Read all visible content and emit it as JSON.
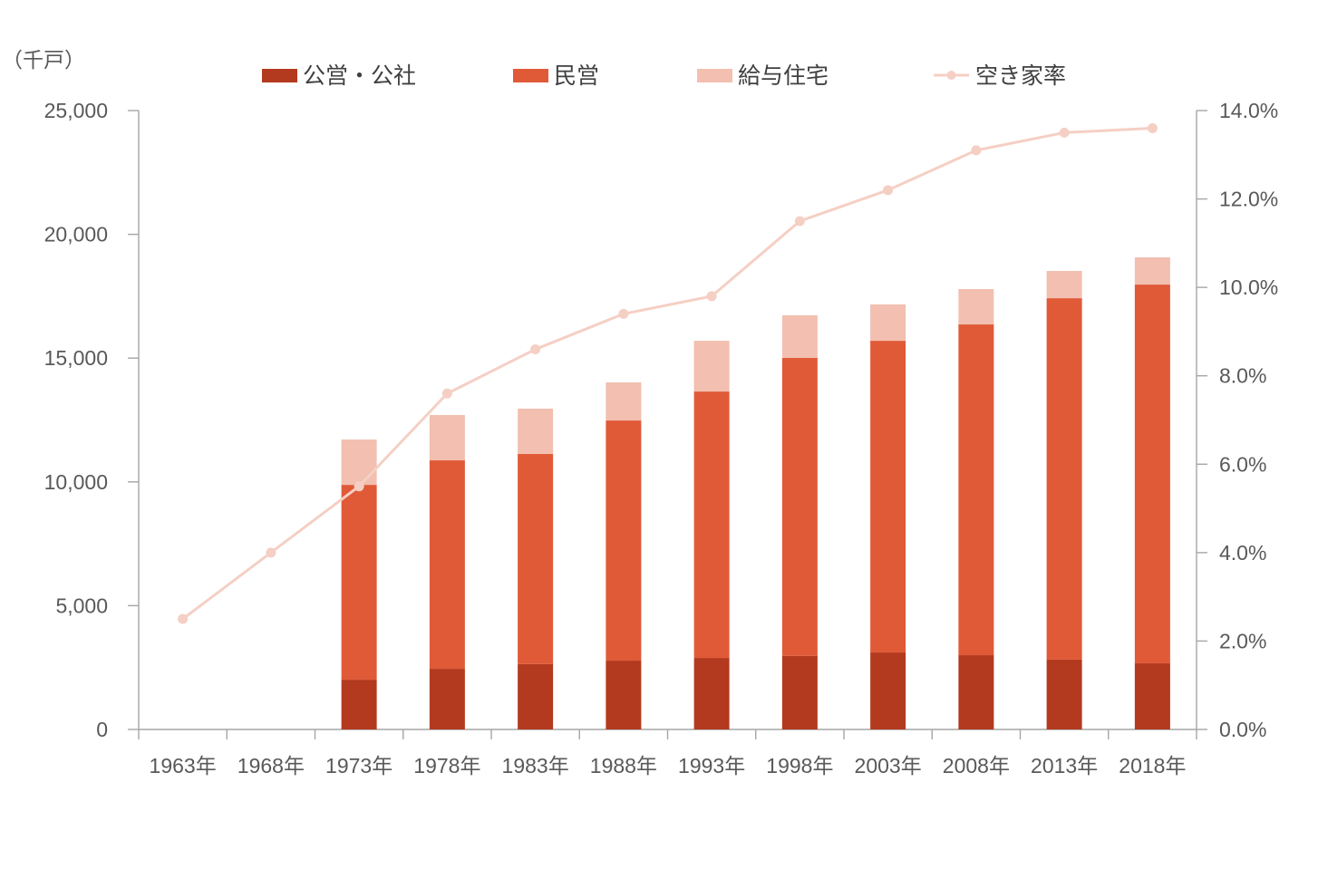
{
  "chart_data": {
    "type": "bar",
    "stacked": true,
    "ylabel": "（千戸）",
    "categories": [
      "1963年",
      "1968年",
      "1973年",
      "1978年",
      "1983年",
      "1988年",
      "1993年",
      "1998年",
      "2003年",
      "2008年",
      "2013年",
      "2018年"
    ],
    "ylim": [
      0,
      25000
    ],
    "y_ticks": [
      0,
      5000,
      10000,
      15000,
      20000,
      25000
    ],
    "y_tick_labels": [
      "0",
      "5,000",
      "10,000",
      "15,000",
      "20,000",
      "25,000"
    ],
    "y2lim": [
      0,
      14
    ],
    "y2_ticks": [
      0,
      2,
      4,
      6,
      8,
      10,
      12,
      14
    ],
    "y2_tick_labels": [
      "0.0%",
      "2.0%",
      "4.0%",
      "6.0%",
      "8.0%",
      "10.0%",
      "12.0%",
      "14.0%"
    ],
    "grid": false,
    "legend": "top",
    "series": [
      {
        "name": "公営・公社",
        "type": "bar",
        "color": "#B33A1F",
        "values": [
          null,
          null,
          2010,
          2450,
          2640,
          2780,
          2890,
          2970,
          3110,
          3000,
          2820,
          2670
        ]
      },
      {
        "name": "民営",
        "type": "bar",
        "color": "#E05A38",
        "values": [
          null,
          null,
          7870,
          8420,
          8490,
          9700,
          10760,
          12040,
          12590,
          13360,
          14600,
          15300
        ]
      },
      {
        "name": "給与住宅",
        "type": "bar",
        "color": "#F2BFB0",
        "values": [
          null,
          null,
          1830,
          1830,
          1830,
          1540,
          2050,
          1720,
          1470,
          1430,
          1100,
          1100
        ]
      },
      {
        "name": "空き家率",
        "type": "line",
        "secondary_axis": true,
        "color": "#F5CFC4",
        "values": [
          2.5,
          4.0,
          5.5,
          7.6,
          8.6,
          9.4,
          9.8,
          11.5,
          12.2,
          13.1,
          13.5,
          13.6
        ]
      }
    ]
  }
}
